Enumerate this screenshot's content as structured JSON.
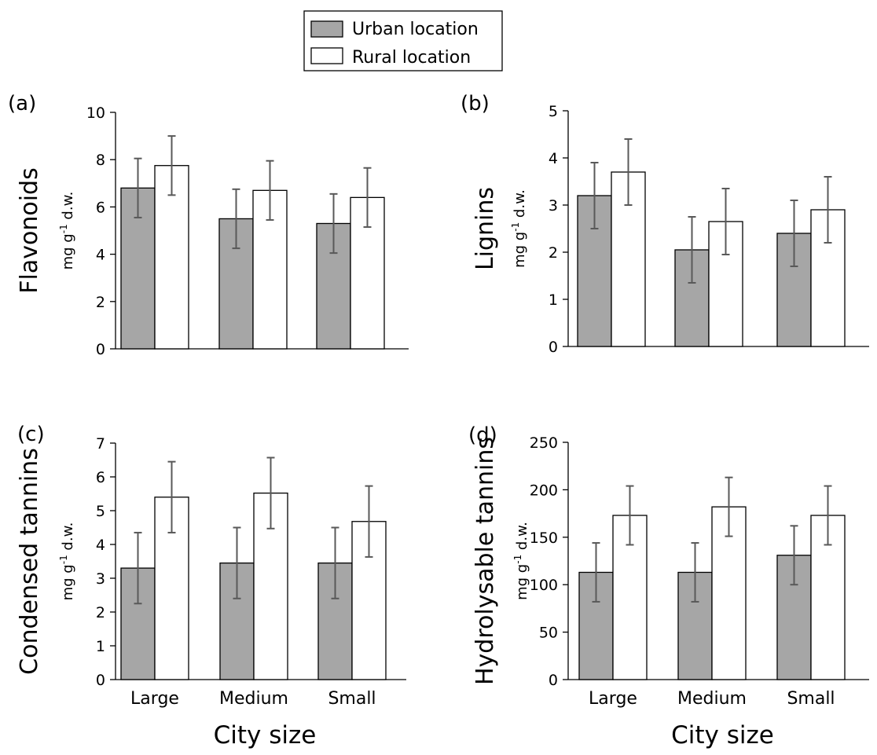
{
  "legend": {
    "entries": [
      {
        "label": "Urban location",
        "color": "#a6a6a6"
      },
      {
        "label": "Rural location",
        "color": "#ffffff"
      }
    ]
  },
  "colors": {
    "urban": "#a6a6a6",
    "rural": "#ffffff",
    "error_bar": "#595959",
    "axis": "#000000"
  },
  "chart_data": [
    {
      "type": "bar",
      "panel_label": "(a)",
      "ylabel": "Flavonoids",
      "yunit": "mg g-1 d.w.",
      "categories": [
        "Large",
        "Medium",
        "Small"
      ],
      "ylim": [
        0,
        10
      ],
      "yticks": [
        "0",
        "2",
        "4",
        "6",
        "8",
        "10"
      ],
      "series": [
        {
          "name": "Urban location",
          "values": [
            6.8,
            5.5,
            5.3
          ],
          "errors": [
            1.25,
            1.25,
            1.25
          ]
        },
        {
          "name": "Rural location",
          "values": [
            7.75,
            6.7,
            6.4
          ],
          "errors": [
            1.25,
            1.25,
            1.25
          ]
        }
      ]
    },
    {
      "type": "bar",
      "panel_label": "(b)",
      "ylabel": "Lignins",
      "yunit": "mg g-1 d.w.",
      "categories": [
        "Large",
        "Medium",
        "Small"
      ],
      "ylim": [
        0,
        5
      ],
      "yticks": [
        "0",
        "1",
        "2",
        "3",
        "4",
        "5"
      ],
      "series": [
        {
          "name": "Urban location",
          "values": [
            3.2,
            2.05,
            2.4
          ],
          "errors": [
            0.7,
            0.7,
            0.7
          ]
        },
        {
          "name": "Rural location",
          "values": [
            3.7,
            2.65,
            2.9
          ],
          "errors": [
            0.7,
            0.7,
            0.7
          ]
        }
      ]
    },
    {
      "type": "bar",
      "panel_label": "(c)",
      "ylabel": "Condensed tannins",
      "yunit": "mg g-1 d.w.",
      "xlabel": "City size",
      "categories": [
        "Large",
        "Medium",
        "Small"
      ],
      "ylim": [
        0,
        7
      ],
      "yticks": [
        "0",
        "1",
        "2",
        "3",
        "4",
        "5",
        "6",
        "7"
      ],
      "series": [
        {
          "name": "Urban location",
          "values": [
            3.3,
            3.45,
            3.45
          ],
          "errors": [
            1.05,
            1.05,
            1.05
          ]
        },
        {
          "name": "Rural location",
          "values": [
            5.4,
            5.52,
            4.68
          ],
          "errors": [
            1.05,
            1.05,
            1.05
          ]
        }
      ]
    },
    {
      "type": "bar",
      "panel_label": "(d)",
      "ylabel": "Hydrolysable tannins",
      "yunit": "mg g-1 d.w.",
      "xlabel": "City size",
      "categories": [
        "Large",
        "Medium",
        "Small"
      ],
      "ylim": [
        0,
        250
      ],
      "yticks": [
        "0",
        "50",
        "100",
        "150",
        "200",
        "250"
      ],
      "series": [
        {
          "name": "Urban location",
          "values": [
            113,
            113,
            131
          ],
          "errors": [
            31,
            31,
            31
          ]
        },
        {
          "name": "Rural location",
          "values": [
            173,
            182,
            173
          ],
          "errors": [
            31,
            31,
            31
          ]
        }
      ]
    }
  ]
}
